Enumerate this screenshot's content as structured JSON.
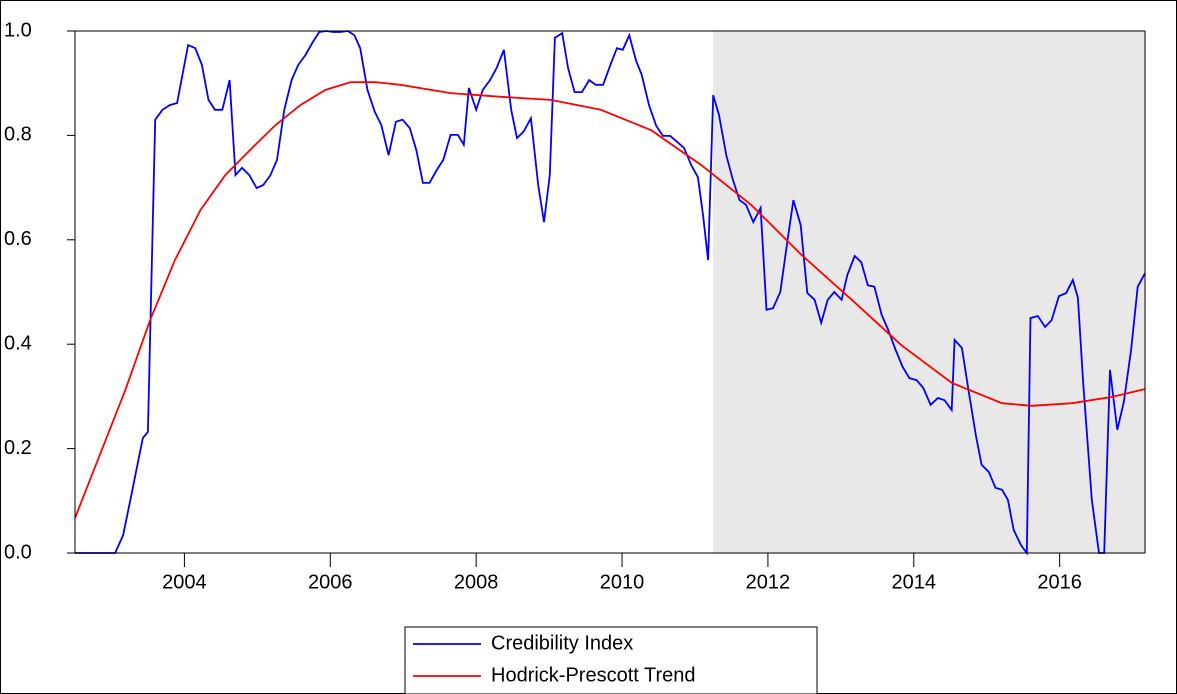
{
  "chart_data": {
    "type": "line",
    "xlim": [
      2002.5,
      2017.17
    ],
    "xticks": [
      2004,
      2006,
      2008,
      2010,
      2012,
      2014,
      2016
    ],
    "ylim": [
      0,
      1
    ],
    "yticks": [
      {
        "value": 0,
        "label": "0.0"
      },
      0.2,
      0.4,
      0.6,
      0.8,
      {
        "value": 1,
        "label": "1.0"
      }
    ],
    "shade": [
      2011.25,
      2017.17
    ],
    "shade_color": "#e8e8e8",
    "legend": "bottom",
    "series": [
      {
        "name": "Credibility Index",
        "color": "#0000ff",
        "x": [
          2002.5,
          2003.05,
          2003.16,
          2003.26,
          2003.43,
          2003.5,
          2003.6,
          2003.7,
          2003.8,
          2003.9,
          2004.05,
          2004.15,
          2004.24,
          2004.33,
          2004.42,
          2004.52,
          2004.62,
          2004.7,
          2004.79,
          2004.89,
          2004.99,
          2005.08,
          2005.18,
          2005.27,
          2005.37,
          2005.47,
          2005.56,
          2005.66,
          2005.76,
          2005.85,
          2005.95,
          2006.04,
          2006.14,
          2006.24,
          2006.33,
          2006.41,
          2006.51,
          2006.61,
          2006.7,
          2006.8,
          2006.9,
          2006.99,
          2007.09,
          2007.18,
          2007.27,
          2007.36,
          2007.46,
          2007.55,
          2007.65,
          2007.75,
          2007.83,
          2007.9,
          2008.0,
          2008.09,
          2008.19,
          2008.28,
          2008.38,
          2008.48,
          2008.56,
          2008.65,
          2008.75,
          2008.85,
          2008.93,
          2009.01,
          2009.08,
          2009.18,
          2009.26,
          2009.35,
          2009.45,
          2009.55,
          2009.64,
          2009.74,
          2009.84,
          2009.93,
          2010.01,
          2010.1,
          2010.19,
          2010.27,
          2010.37,
          2010.47,
          2010.56,
          2010.66,
          2010.76,
          2010.85,
          2010.95,
          2011.04,
          2011.11,
          2011.18,
          2011.25,
          2011.33,
          2011.43,
          2011.52,
          2011.61,
          2011.7,
          2011.8,
          2011.9,
          2011.98,
          2012.07,
          2012.17,
          2012.27,
          2012.35,
          2012.45,
          2012.54,
          2012.64,
          2012.73,
          2012.82,
          2012.91,
          2013.01,
          2013.09,
          2013.19,
          2013.28,
          2013.37,
          2013.46,
          2013.56,
          2013.65,
          2013.75,
          2013.85,
          2013.94,
          2014.04,
          2014.13,
          2014.23,
          2014.33,
          2014.42,
          2014.52,
          2014.56,
          2014.66,
          2014.75,
          2014.85,
          2014.93,
          2015.03,
          2015.12,
          2015.21,
          2015.29,
          2015.37,
          2015.47,
          2015.55,
          2015.6,
          2015.7,
          2015.8,
          2015.89,
          2015.99,
          2016.09,
          2016.18,
          2016.25,
          2016.32,
          2016.44,
          2016.54,
          2016.61,
          2016.69,
          2016.79,
          2016.88,
          2016.98,
          2017.07,
          2017.17
        ],
        "values": [
          0,
          0,
          0.034,
          0.102,
          0.22,
          0.232,
          0.83,
          0.849,
          0.858,
          0.862,
          0.973,
          0.967,
          0.935,
          0.868,
          0.849,
          0.849,
          0.906,
          0.724,
          0.738,
          0.724,
          0.699,
          0.705,
          0.724,
          0.753,
          0.849,
          0.906,
          0.935,
          0.954,
          0.979,
          0.998,
          1,
          0.998,
          0.998,
          1,
          0.992,
          0.967,
          0.887,
          0.845,
          0.82,
          0.762,
          0.826,
          0.83,
          0.814,
          0.772,
          0.709,
          0.709,
          0.734,
          0.753,
          0.801,
          0.801,
          0.782,
          0.891,
          0.849,
          0.887,
          0.906,
          0.929,
          0.964,
          0.849,
          0.795,
          0.807,
          0.833,
          0.705,
          0.634,
          0.724,
          0.987,
          0.996,
          0.929,
          0.883,
          0.883,
          0.906,
          0.897,
          0.897,
          0.935,
          0.967,
          0.964,
          0.992,
          0.944,
          0.916,
          0.858,
          0.818,
          0.799,
          0.799,
          0.787,
          0.776,
          0.743,
          0.72,
          0.648,
          0.561,
          0.877,
          0.839,
          0.762,
          0.715,
          0.676,
          0.667,
          0.634,
          0.661,
          0.466,
          0.469,
          0.5,
          0.6,
          0.676,
          0.628,
          0.498,
          0.485,
          0.441,
          0.485,
          0.5,
          0.485,
          0.533,
          0.569,
          0.557,
          0.513,
          0.51,
          0.456,
          0.427,
          0.389,
          0.356,
          0.335,
          0.331,
          0.316,
          0.284,
          0.297,
          0.293,
          0.274,
          0.408,
          0.393,
          0.312,
          0.226,
          0.169,
          0.155,
          0.125,
          0.121,
          0.102,
          0.044,
          0.015,
          0,
          0.45,
          0.454,
          0.433,
          0.446,
          0.492,
          0.498,
          0.523,
          0.489,
          0.331,
          0.102,
          0,
          0,
          0.351,
          0.236,
          0.289,
          0.389,
          0.51,
          0.536
        ]
      },
      {
        "name": "Hodrick-Prescott Trend",
        "color": "#ff0000",
        "x": [
          2002.5,
          2002.84,
          2003.19,
          2003.53,
          2003.87,
          2004.22,
          2004.56,
          2004.9,
          2005.25,
          2005.59,
          2005.93,
          2006.28,
          2006.62,
          2006.96,
          2007.65,
          2008.34,
          2009.02,
          2009.71,
          2010.4,
          2011.09,
          2011.77,
          2012.46,
          2013.15,
          2013.83,
          2014.52,
          2015.21,
          2015.62,
          2016.17,
          2016.72,
          2017.17
        ],
        "values": [
          0.067,
          0.188,
          0.312,
          0.446,
          0.561,
          0.657,
          0.724,
          0.772,
          0.82,
          0.858,
          0.887,
          0.902,
          0.902,
          0.897,
          0.881,
          0.874,
          0.868,
          0.849,
          0.81,
          0.743,
          0.667,
          0.571,
          0.485,
          0.398,
          0.326,
          0.287,
          0.282,
          0.287,
          0.299,
          0.314
        ]
      }
    ]
  }
}
